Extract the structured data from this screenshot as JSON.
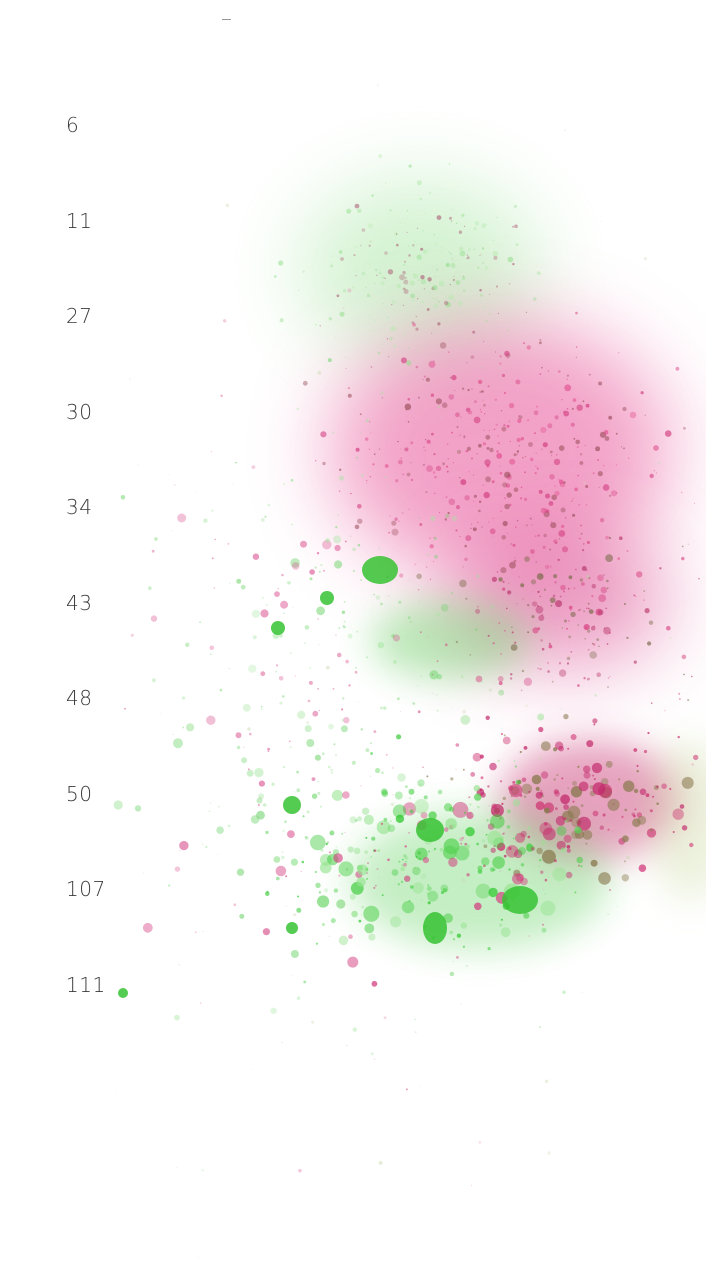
{
  "list": {
    "items": [
      6,
      11,
      27,
      30,
      34,
      43,
      48,
      50,
      107,
      111
    ]
  }
}
